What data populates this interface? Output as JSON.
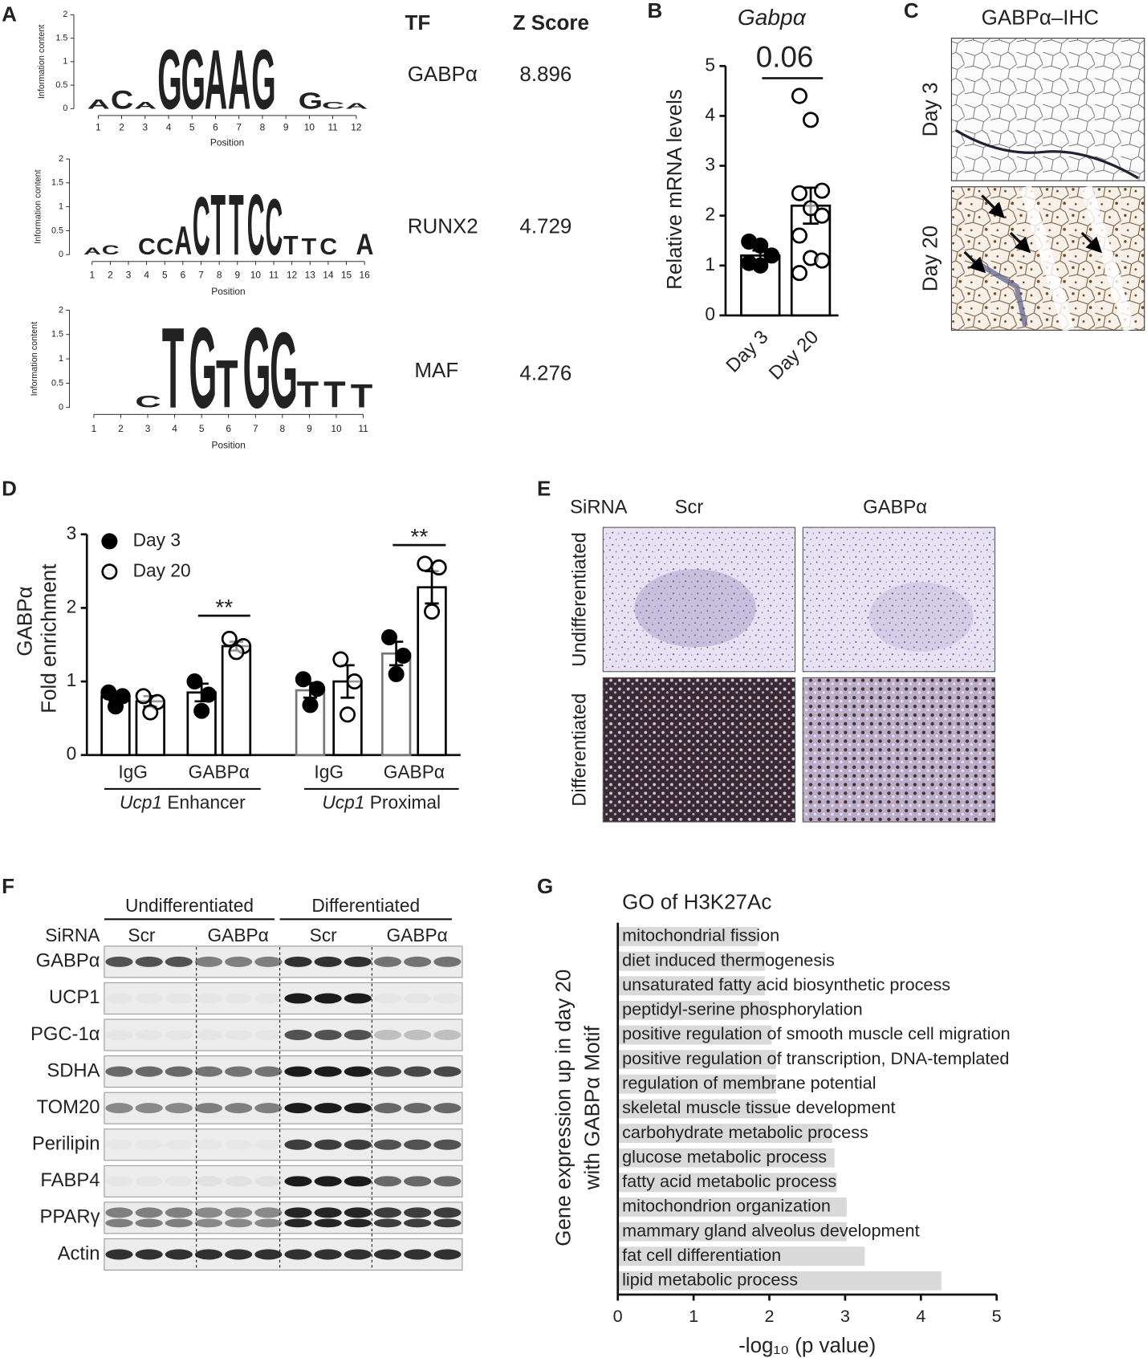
{
  "chart_data": [
    {
      "type": "logo",
      "panel": "A",
      "columns": [
        "TF",
        "Z Score"
      ],
      "ylabel": "Information content",
      "xlabel": "Position",
      "ylim": [
        0,
        2
      ],
      "yticks": [
        0,
        0.5,
        1,
        1.5,
        2
      ],
      "colors": {
        "A": "#169c48",
        "C": "#2243c4",
        "G": "#f39c1e",
        "T": "#e0162b"
      },
      "motifs": [
        {
          "tf": "GABPα",
          "z_score": 8.896,
          "xticks": [
            1,
            2,
            3,
            4,
            5,
            6,
            7,
            8,
            9,
            10,
            11,
            12
          ],
          "logo": [
            {
              "letter": "A",
              "position": 1,
              "bits": 0.2
            },
            {
              "letter": "C",
              "position": 2,
              "bits": 0.4
            },
            {
              "letter": "A",
              "position": 3,
              "bits": 0.15
            },
            {
              "letter": "G",
              "position": 4,
              "bits": 1.3
            },
            {
              "letter": "G",
              "position": 5,
              "bits": 1.3
            },
            {
              "letter": "A",
              "position": 6,
              "bits": 1.3
            },
            {
              "letter": "A",
              "position": 7,
              "bits": 1.3
            },
            {
              "letter": "G",
              "position": 8,
              "bits": 1.3
            },
            {
              "letter": "G",
              "position": 10,
              "bits": 0.35
            },
            {
              "letter": "C",
              "position": 11,
              "bits": 0.15
            },
            {
              "letter": "A",
              "position": 12,
              "bits": 0.12
            }
          ]
        },
        {
          "tf": "RUNX2",
          "z_score": 4.729,
          "xticks": [
            1,
            2,
            3,
            4,
            5,
            6,
            7,
            8,
            9,
            10,
            11,
            12,
            13,
            14,
            15,
            16
          ],
          "logo": [
            {
              "letter": "A",
              "position": 1,
              "bits": 0.15
            },
            {
              "letter": "C",
              "position": 2,
              "bits": 0.2
            },
            {
              "letter": "C",
              "position": 4,
              "bits": 0.35
            },
            {
              "letter": "C",
              "position": 5,
              "bits": 0.35
            },
            {
              "letter": "A",
              "position": 6,
              "bits": 0.6
            },
            {
              "letter": "C",
              "position": 7,
              "bits": 1.25
            },
            {
              "letter": "T",
              "position": 8,
              "bits": 1.3
            },
            {
              "letter": "T",
              "position": 9,
              "bits": 1.3
            },
            {
              "letter": "C",
              "position": 10,
              "bits": 1.3
            },
            {
              "letter": "C",
              "position": 11,
              "bits": 1.2
            },
            {
              "letter": "T",
              "position": 12,
              "bits": 0.4
            },
            {
              "letter": "T",
              "position": 13,
              "bits": 0.35
            },
            {
              "letter": "C",
              "position": 14,
              "bits": 0.35
            },
            {
              "letter": "A",
              "position": 16,
              "bits": 0.45
            }
          ]
        },
        {
          "tf": "MAF",
          "z_score": 4.276,
          "xticks": [
            1,
            2,
            3,
            4,
            5,
            6,
            7,
            8,
            9,
            10,
            11
          ],
          "logo": [
            {
              "letter": "C",
              "position": 3,
              "bits": 0.25
            },
            {
              "letter": "T",
              "position": 4,
              "bits": 1.7
            },
            {
              "letter": "G",
              "position": 5,
              "bits": 1.7
            },
            {
              "letter": "T",
              "position": 6,
              "bits": 1.0
            },
            {
              "letter": "G",
              "position": 7,
              "bits": 1.7
            },
            {
              "letter": "G",
              "position": 8,
              "bits": 1.6
            },
            {
              "letter": "T",
              "position": 9,
              "bits": 0.55
            },
            {
              "letter": "T",
              "position": 10,
              "bits": 0.55
            },
            {
              "letter": "T",
              "position": 11,
              "bits": 0.5
            }
          ]
        }
      ]
    },
    {
      "type": "bar",
      "panel": "B",
      "title": "Gabpα",
      "ylabel": "Relative mRNA levels",
      "annotation": "0.06",
      "categories": [
        "Day 3",
        "Day 20"
      ],
      "values": [
        1.2,
        2.2
      ],
      "errors": [
        0.1,
        0.36
      ],
      "point_styles": [
        "filled",
        "open"
      ],
      "points": [
        [
          1.48,
          1.4,
          1.2,
          1.05,
          1.0
        ],
        [
          4.4,
          3.92,
          2.5,
          2.45,
          2.15,
          2.0,
          1.6,
          1.15,
          1.1,
          0.85
        ]
      ],
      "ylim": [
        0,
        5
      ],
      "yticks": [
        0,
        1,
        2,
        3,
        4,
        5
      ]
    },
    {
      "type": "image",
      "panel": "C",
      "title": "GABPα–IHC",
      "rows": [
        "Day 3",
        "Day 20"
      ]
    },
    {
      "type": "grouped_bar",
      "panel": "D",
      "ylabel": [
        "GABPα",
        "Fold enrichment"
      ],
      "categories": [
        "IgG",
        "GABPα",
        "IgG",
        "GABPα"
      ],
      "groups": [
        {
          "gene": "Ucp1",
          "region": "Enhancer"
        },
        {
          "gene": "Ucp1",
          "region": "Proximal"
        }
      ],
      "series": [
        {
          "name": "Day 3",
          "style": "filled",
          "values": [
            0.8,
            0.85,
            0.88,
            1.38
          ],
          "errors": [
            0.06,
            0.12,
            0.1,
            0.16
          ],
          "points": [
            [
              0.85,
              0.8,
              0.66
            ],
            [
              1.0,
              0.82,
              0.6
            ],
            [
              1.03,
              0.9,
              0.68
            ],
            [
              1.6,
              1.35,
              1.1
            ]
          ]
        },
        {
          "name": "Day 20",
          "style": "open",
          "values": [
            0.73,
            1.48,
            1.0,
            2.28
          ],
          "errors": [
            0.07,
            0.06,
            0.22,
            0.22
          ],
          "points": [
            [
              0.8,
              0.72,
              0.58
            ],
            [
              1.58,
              1.48,
              1.4
            ],
            [
              1.3,
              1.0,
              0.55
            ],
            [
              2.6,
              2.55,
              1.95
            ]
          ]
        }
      ],
      "annotations": [
        {
          "category": 1,
          "text": "**"
        },
        {
          "category": 3,
          "text": "**"
        }
      ],
      "ylim": [
        0,
        3
      ],
      "yticks": [
        0,
        1,
        2,
        3
      ]
    },
    {
      "type": "image",
      "panel": "E",
      "sirna_label": "SiRNA",
      "columns": [
        "Scr",
        "GABPα"
      ],
      "rows": [
        "Undifferentiated",
        "Differentiated"
      ]
    },
    {
      "type": "blot",
      "panel": "F",
      "conditions": [
        "Undifferentiated",
        "Differentiated"
      ],
      "sirna_label": "SiRNA",
      "groups": [
        "Scr",
        "GABPα",
        "Scr",
        "GABPα"
      ],
      "proteins": [
        "GABPα",
        "UCP1",
        "PGC-1α",
        "SDHA",
        "TOM20",
        "Perilipin",
        "FABP4",
        "PPARγ",
        "Actin"
      ]
    },
    {
      "type": "hbar",
      "panel": "G",
      "title": "GO of H3K27Ac",
      "ylabel": [
        "Gene expression up in day 20",
        "with GABPα Motif"
      ],
      "xlabel": "-log₁₀ (p value)",
      "color": "#d9d9d9",
      "categories": [
        "mitochondrial fission",
        "diet induced thermogenesis",
        "unsaturated fatty acid biosynthetic process",
        "peptidyl-serine phosphorylation",
        "positive regulation of smooth muscle cell migration",
        "positive regulation of transcription, DNA-templated",
        "regulation of membrane potential",
        "skeletal muscle tissue development",
        "carbohydrate metabolic process",
        "glucose metabolic process",
        "fatty acid metabolic process",
        "mitochondrion organization",
        "mammary gland alveolus development",
        "fat cell differentiation",
        "lipid metabolic process"
      ],
      "values": [
        1.85,
        1.94,
        1.94,
        2.0,
        2.03,
        2.09,
        2.09,
        2.11,
        2.83,
        2.86,
        2.89,
        3.02,
        3.02,
        3.26,
        4.27
      ],
      "xlim": [
        0,
        5
      ],
      "xticks": [
        0,
        1,
        2,
        3,
        4,
        5
      ]
    }
  ]
}
